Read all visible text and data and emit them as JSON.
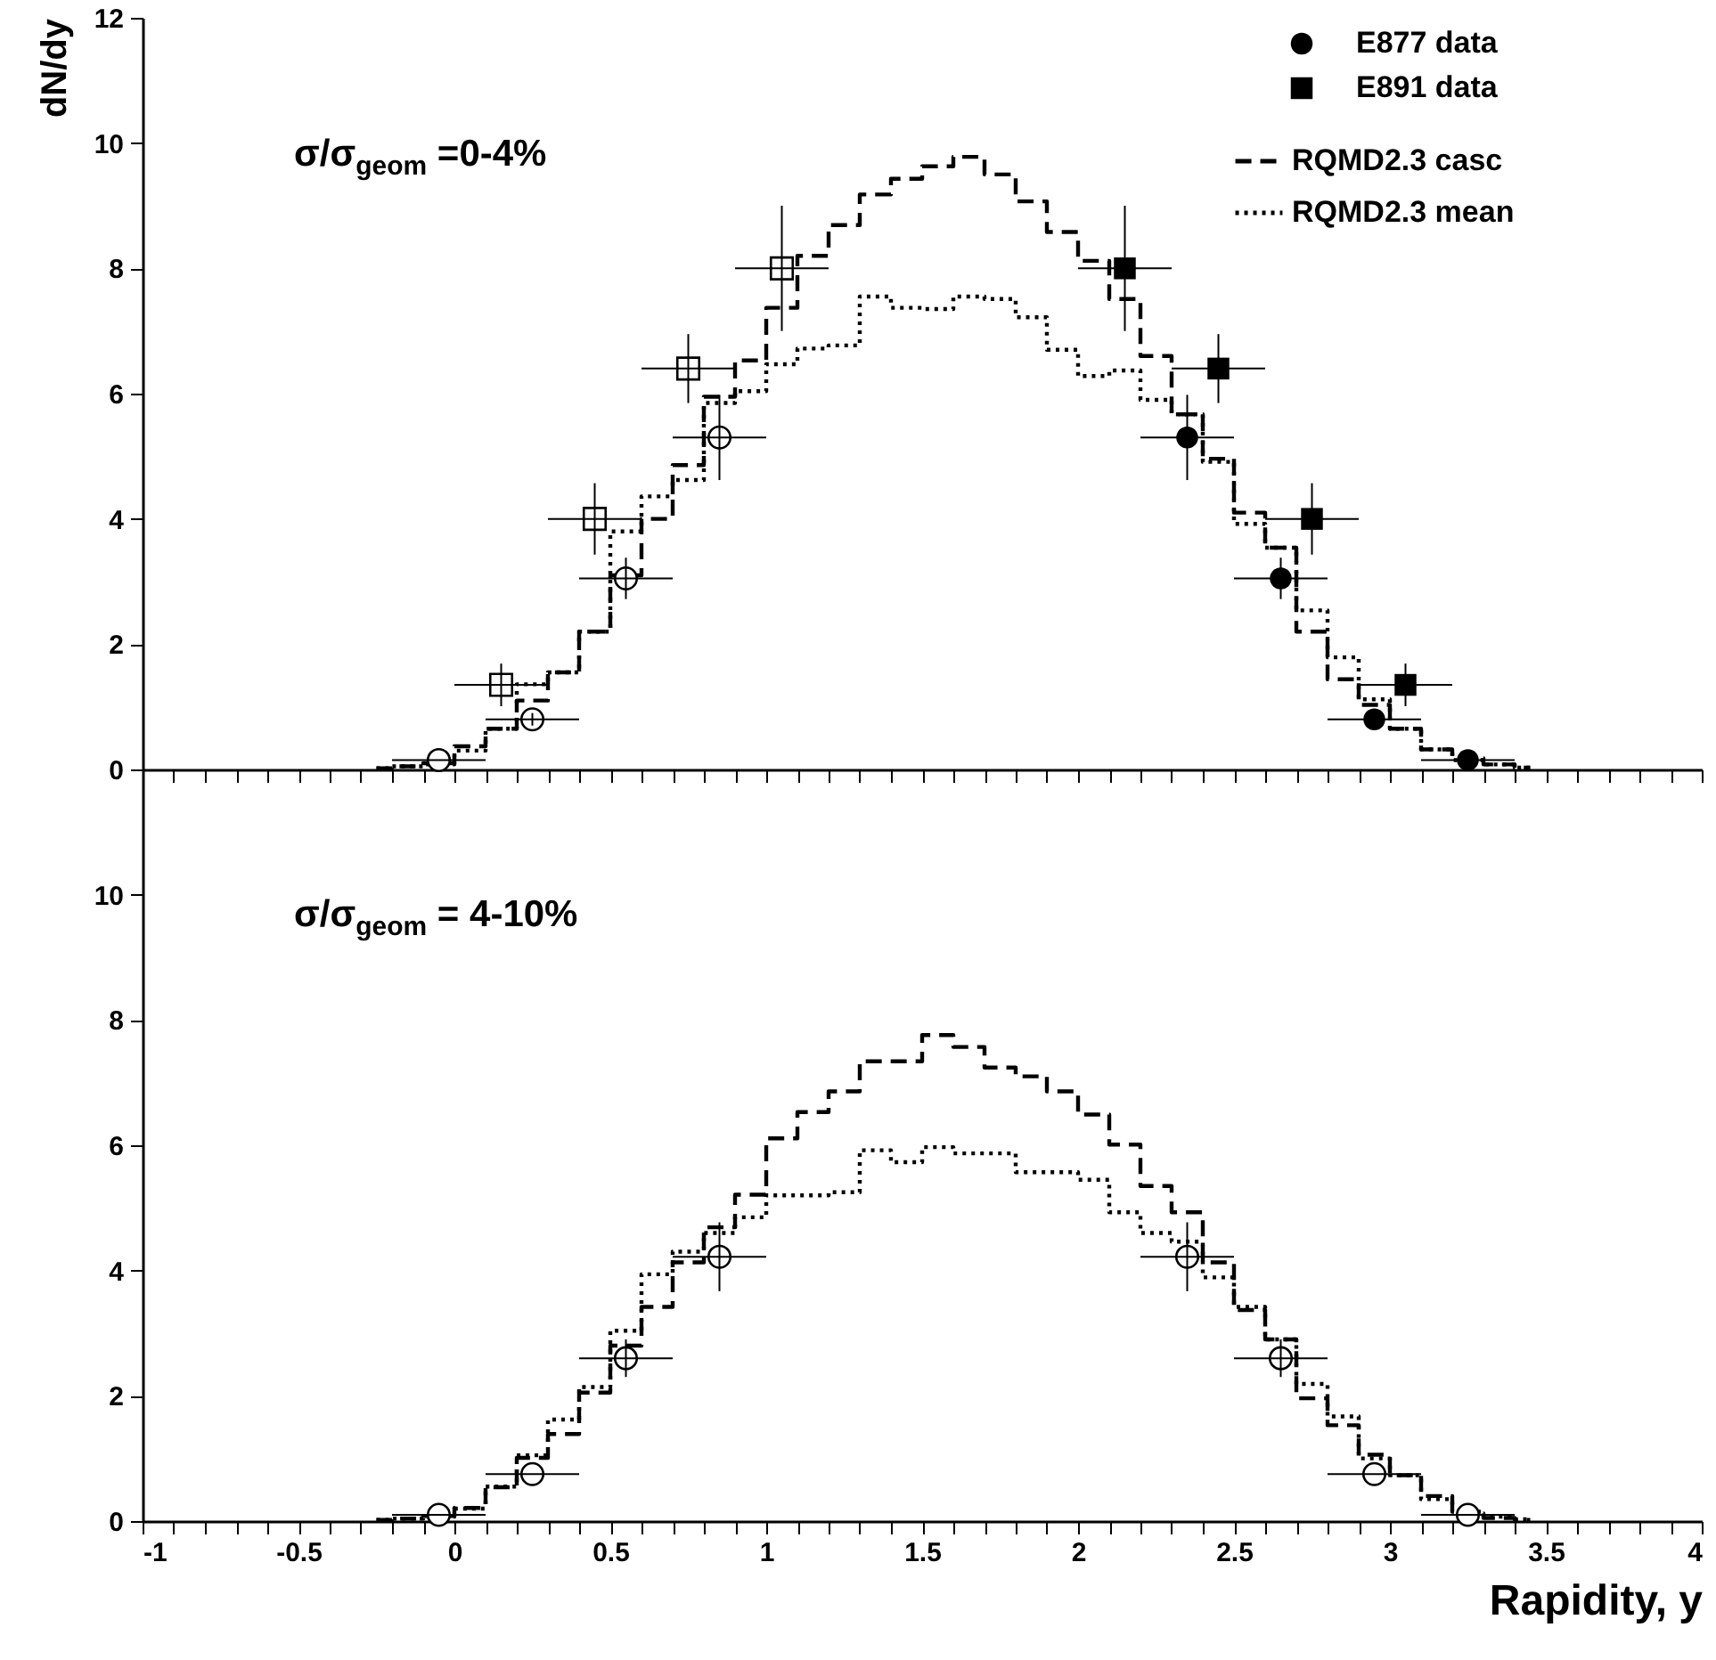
{
  "chart_data": [
    {
      "type": "step",
      "ylabel": "dN/dy",
      "annotations": [
        "σ/σ$_{geom}$ =0-4%"
      ],
      "xlim": [
        -1,
        4
      ],
      "ylim": [
        0,
        12
      ],
      "xticks": [
        -1,
        {
          "value": -0.9,
          "label": null
        },
        {
          "value": -0.8,
          "label": null
        },
        {
          "value": -0.7,
          "label": null
        },
        {
          "value": -0.6,
          "label": null
        },
        -0.5,
        {
          "value": -0.4,
          "label": null
        },
        {
          "value": -0.3,
          "label": null
        },
        {
          "value": -0.2,
          "label": null
        },
        {
          "value": -0.1,
          "label": null
        },
        0,
        {
          "value": 0.1,
          "label": null
        },
        {
          "value": 0.2,
          "label": null
        },
        {
          "value": 0.3,
          "label": null
        },
        {
          "value": 0.4,
          "label": null
        },
        0.5,
        {
          "value": 0.6,
          "label": null
        },
        {
          "value": 0.7,
          "label": null
        },
        {
          "value": 0.8,
          "label": null
        },
        {
          "value": 0.9,
          "label": null
        },
        1,
        {
          "value": 1.1,
          "label": null
        },
        {
          "value": 1.2,
          "label": null
        },
        {
          "value": 1.3,
          "label": null
        },
        {
          "value": 1.4,
          "label": null
        },
        1.5,
        {
          "value": 1.6,
          "label": null
        },
        {
          "value": 1.7,
          "label": null
        },
        {
          "value": 1.8,
          "label": null
        },
        {
          "value": 1.9,
          "label": null
        },
        2,
        {
          "value": 2.1,
          "label": null
        },
        {
          "value": 2.2,
          "label": null
        },
        {
          "value": 2.3,
          "label": null
        },
        {
          "value": 2.4,
          "label": null
        },
        2.5,
        {
          "value": 2.6,
          "label": null
        },
        {
          "value": 2.7,
          "label": null
        },
        {
          "value": 2.8,
          "label": null
        },
        {
          "value": 2.9,
          "label": null
        },
        3,
        {
          "value": 3.1,
          "label": null
        },
        {
          "value": 3.2,
          "label": null
        },
        {
          "value": 3.3,
          "label": null
        },
        {
          "value": 3.4,
          "label": null
        },
        3.5,
        {
          "value": 3.6,
          "label": null
        },
        {
          "value": 3.7,
          "label": null
        },
        {
          "value": 3.8,
          "label": null
        },
        {
          "value": 3.9,
          "label": null
        },
        4
      ],
      "yticks": [
        0,
        2,
        4,
        6,
        8,
        10,
        12
      ],
      "tick_labels": "y",
      "legend": "top right",
      "x": [
        -0.25,
        -0.15,
        -0.05,
        0.05,
        0.15,
        0.25,
        0.35,
        0.45,
        0.55,
        0.65,
        0.75,
        0.85,
        0.95,
        1.05,
        1.15,
        1.25,
        1.35,
        1.45,
        1.55,
        1.65,
        1.75,
        1.85,
        1.95,
        2.05,
        2.15,
        2.25,
        2.35,
        2.45,
        2.55,
        2.65,
        2.75,
        2.85,
        2.95,
        3.05,
        3.15,
        3.25,
        3.35,
        3.45
      ],
      "series": [
        {
          "name": "RQMD2.3 casc",
          "line_style": "dashed",
          "color": "#000000",
          "values": [
            0.02,
            0.05,
            0.1,
            0.37,
            0.65,
            1.1,
            1.55,
            2.2,
            3.1,
            4.0,
            4.86,
            5.95,
            6.53,
            7.37,
            8.2,
            8.69,
            9.18,
            9.43,
            9.63,
            9.78,
            9.5,
            9.07,
            8.58,
            8.12,
            7.51,
            6.6,
            5.67,
            4.96,
            4.1,
            3.54,
            2.2,
            1.44,
            1.03,
            0.65,
            0.32,
            0.18,
            0.08,
            0.03
          ]
        },
        {
          "name": "RQMD2.3 mean",
          "line_style": "dotted",
          "color": "#000000",
          "values": [
            0.02,
            0.05,
            0.08,
            0.3,
            0.65,
            1.36,
            1.55,
            2.2,
            3.8,
            4.36,
            4.62,
            5.85,
            6.04,
            6.47,
            6.72,
            6.77,
            7.55,
            7.37,
            7.35,
            7.55,
            7.51,
            7.22,
            6.7,
            6.28,
            6.37,
            5.9,
            5.67,
            4.91,
            3.92,
            3.54,
            2.54,
            1.79,
            1.12,
            0.65,
            0.32,
            0.15,
            0.08,
            0.03
          ]
        },
        {
          "name": "E877 data",
          "type": "scatter",
          "marker": "circle",
          "color": "#000000",
          "x": [
            2.35,
            2.65,
            2.95,
            3.25
          ],
          "values": [
            5.3,
            3.05,
            0.8,
            0.15
          ],
          "errors": [
            0.68,
            0.33,
            0.1,
            null
          ],
          "xerrors": [
            0.15,
            0.15,
            0.15,
            0.15
          ]
        },
        {
          "name": "E891 data",
          "type": "scatter",
          "marker": "square",
          "color": "#000000",
          "x": [
            2.15,
            2.45,
            2.75,
            3.05
          ],
          "values": [
            8.0,
            6.4,
            4.0,
            1.35
          ],
          "errors": [
            1.0,
            0.55,
            0.57,
            0.34
          ],
          "xerrors": [
            0.15,
            0.15,
            0.15,
            0.15
          ]
        },
        {
          "type": "scatter",
          "marker": "circle",
          "color": "#000000",
          "x": [
            -0.05,
            0.25,
            0.55,
            0.85
          ],
          "values": [
            0.15,
            0.8,
            3.05,
            5.3
          ],
          "errors": [
            null,
            0.1,
            0.33,
            0.68
          ],
          "xerrors": [
            0.15,
            0.15,
            0.15,
            0.15
          ]
        },
        {
          "type": "scatter",
          "marker": "square",
          "color": "#000000",
          "x": [
            0.15,
            0.45,
            0.75,
            1.05
          ],
          "values": [
            1.35,
            4.0,
            6.4,
            8.0
          ],
          "errors": [
            0.34,
            0.57,
            0.55,
            1.0
          ],
          "xerrors": [
            0.15,
            0.15,
            0.15,
            0.15
          ]
        }
      ]
    },
    {
      "type": "step",
      "xlabel": "Rapidity, y",
      "annotations": [
        "σ/σ$_{geom}$ = 4-10%"
      ],
      "xlim": [
        -1,
        4
      ],
      "ylim": [
        0,
        12
      ],
      "xticks": [
        -1,
        {
          "value": -0.9,
          "label": null
        },
        {
          "value": -0.8,
          "label": null
        },
        {
          "value": -0.7,
          "label": null
        },
        {
          "value": -0.6,
          "label": null
        },
        -0.5,
        {
          "value": -0.4,
          "label": null
        },
        {
          "value": -0.3,
          "label": null
        },
        {
          "value": -0.2,
          "label": null
        },
        {
          "value": -0.1,
          "label": null
        },
        0,
        {
          "value": 0.1,
          "label": null
        },
        {
          "value": 0.2,
          "label": null
        },
        {
          "value": 0.3,
          "label": null
        },
        {
          "value": 0.4,
          "label": null
        },
        0.5,
        {
          "value": 0.6,
          "label": null
        },
        {
          "value": 0.7,
          "label": null
        },
        {
          "value": 0.8,
          "label": null
        },
        {
          "value": 0.9,
          "label": null
        },
        1,
        {
          "value": 1.1,
          "label": null
        },
        {
          "value": 1.2,
          "label": null
        },
        {
          "value": 1.3,
          "label": null
        },
        {
          "value": 1.4,
          "label": null
        },
        1.5,
        {
          "value": 1.6,
          "label": null
        },
        {
          "value": 1.7,
          "label": null
        },
        {
          "value": 1.8,
          "label": null
        },
        {
          "value": 1.9,
          "label": null
        },
        2,
        {
          "value": 2.1,
          "label": null
        },
        {
          "value": 2.2,
          "label": null
        },
        {
          "value": 2.3,
          "label": null
        },
        {
          "value": 2.4,
          "label": null
        },
        2.5,
        {
          "value": 2.6,
          "label": null
        },
        {
          "value": 2.7,
          "label": null
        },
        {
          "value": 2.8,
          "label": null
        },
        {
          "value": 2.9,
          "label": null
        },
        3,
        {
          "value": 3.1,
          "label": null
        },
        {
          "value": 3.2,
          "label": null
        },
        {
          "value": 3.3,
          "label": null
        },
        {
          "value": 3.4,
          "label": null
        },
        3.5,
        {
          "value": 3.6,
          "label": null
        },
        {
          "value": 3.7,
          "label": null
        },
        {
          "value": 3.8,
          "label": null
        },
        {
          "value": 3.9,
          "label": null
        },
        4
      ],
      "yticks": [
        0,
        2,
        4,
        6,
        8,
        10
      ],
      "x": [
        -0.25,
        -0.15,
        -0.05,
        0.05,
        0.15,
        0.25,
        0.35,
        0.45,
        0.55,
        0.65,
        0.75,
        0.85,
        0.95,
        1.05,
        1.15,
        1.25,
        1.35,
        1.45,
        1.55,
        1.65,
        1.75,
        1.85,
        1.95,
        2.05,
        2.15,
        2.25,
        2.35,
        2.45,
        2.55,
        2.65,
        2.75,
        2.85,
        2.95,
        3.05,
        3.15,
        3.25,
        3.35,
        3.45
      ],
      "series": [
        {
          "line_style": "dashed",
          "color": "#000000",
          "values": [
            0.02,
            0.04,
            0.08,
            0.21,
            0.54,
            1.01,
            1.39,
            2.05,
            2.8,
            3.42,
            4.13,
            4.69,
            5.21,
            6.11,
            6.53,
            6.86,
            7.34,
            7.34,
            7.76,
            7.57,
            7.24,
            7.1,
            6.86,
            6.49,
            6.01,
            5.35,
            4.93,
            4.13,
            3.37,
            2.9,
            1.96,
            1.53,
            1.06,
            0.73,
            0.4,
            0.12,
            0.05,
            0.02
          ]
        },
        {
          "line_style": "dotted",
          "color": "#000000",
          "values": [
            0.02,
            0.04,
            0.07,
            0.2,
            0.55,
            1.05,
            1.62,
            2.14,
            3.04,
            3.94,
            4.3,
            4.6,
            4.85,
            5.2,
            5.2,
            5.25,
            5.92,
            5.73,
            5.97,
            5.87,
            5.87,
            5.57,
            5.57,
            5.45,
            4.93,
            4.6,
            4.46,
            3.89,
            3.42,
            2.9,
            2.19,
            1.67,
            1.0,
            0.73,
            0.35,
            0.15,
            0.07,
            0.03
          ]
        },
        {
          "type": "scatter",
          "marker": "circle",
          "color": "#000000",
          "x": [
            2.35,
            2.65,
            2.95,
            3.25
          ],
          "values": [
            4.22,
            2.6,
            0.75,
            0.1
          ],
          "errors": [
            0.55,
            0.3,
            null,
            null
          ],
          "xerrors": [
            0.15,
            0.15,
            0.15,
            0.15
          ]
        },
        {
          "type": "scatter",
          "marker": "circle",
          "color": "#000000",
          "x": [
            -0.05,
            0.25,
            0.55,
            0.85
          ],
          "values": [
            0.1,
            0.75,
            2.6,
            4.22
          ],
          "errors": [
            null,
            null,
            0.3,
            0.55
          ],
          "xerrors": [
            0.15,
            0.15,
            0.15,
            0.15
          ]
        }
      ]
    }
  ]
}
